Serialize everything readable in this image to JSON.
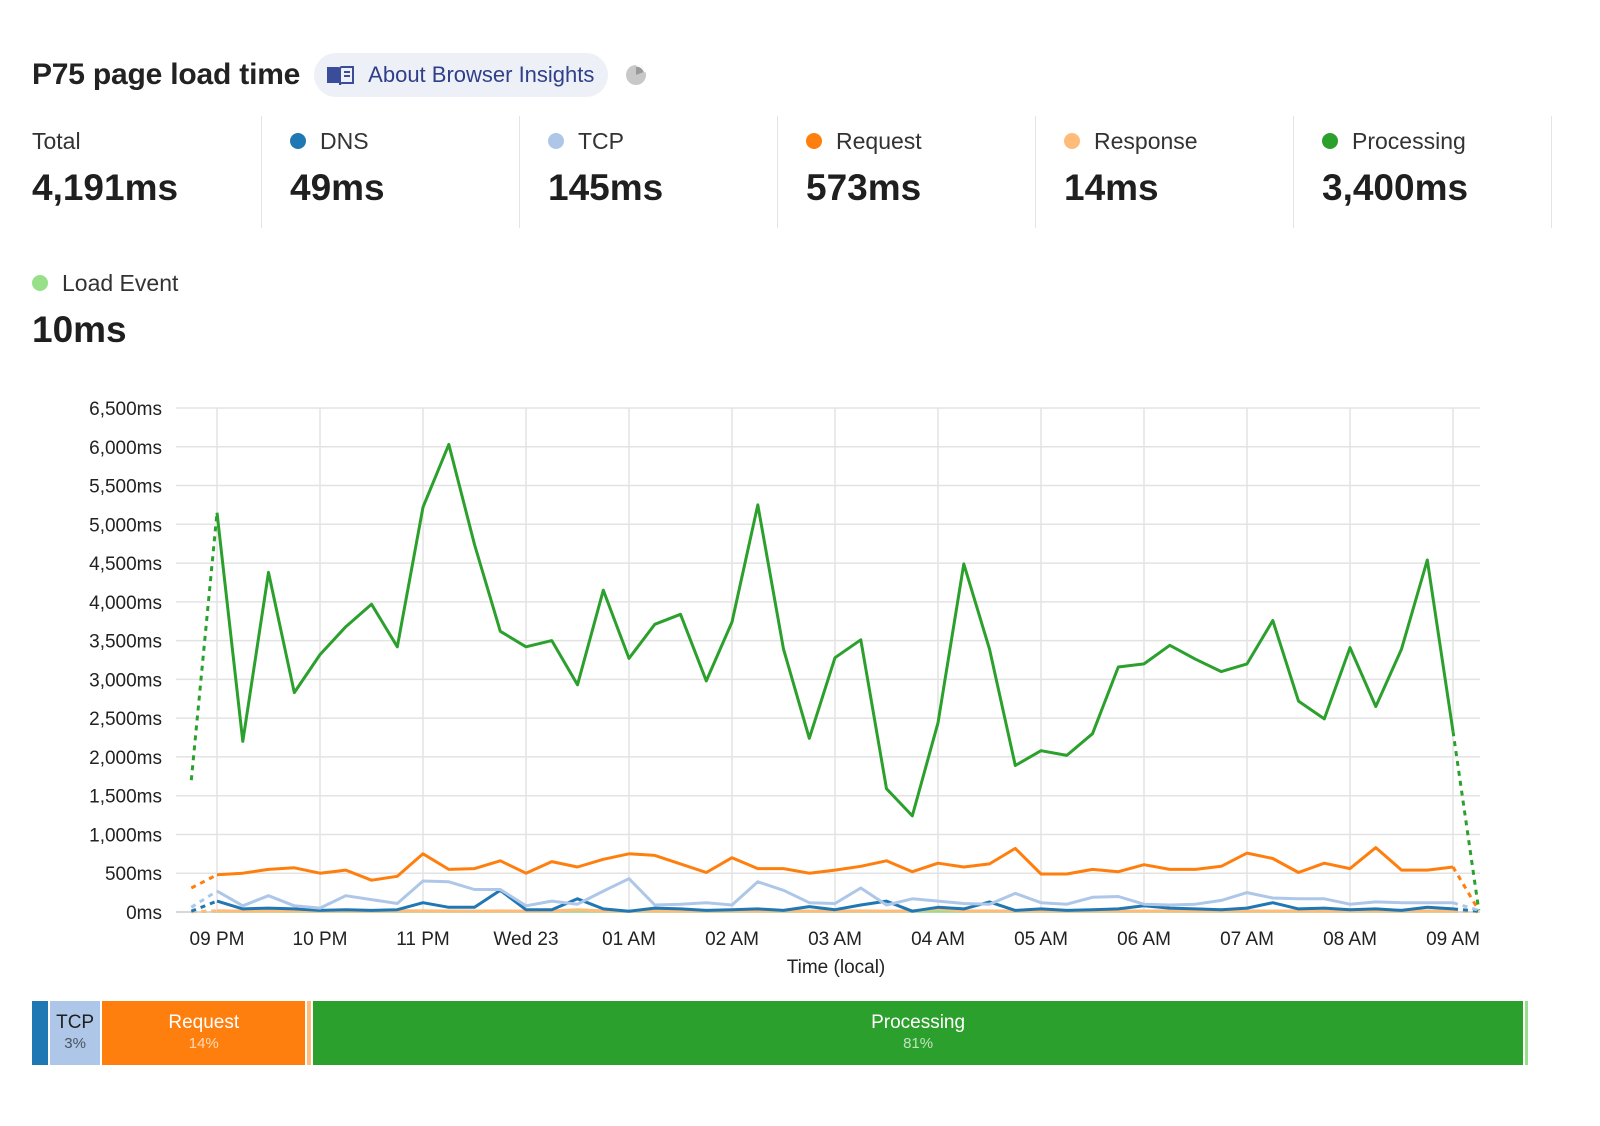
{
  "header": {
    "title": "P75 page load time",
    "about_label": "About Browser Insights"
  },
  "metrics": [
    {
      "label": "Total",
      "value": "4,191ms",
      "color": null
    },
    {
      "label": "DNS",
      "value": "49ms",
      "color": "#1f77b4"
    },
    {
      "label": "TCP",
      "value": "145ms",
      "color": "#aec7e8"
    },
    {
      "label": "Request",
      "value": "573ms",
      "color": "#ff7f0e"
    },
    {
      "label": "Response",
      "value": "14ms",
      "color": "#ffbb78"
    },
    {
      "label": "Processing",
      "value": "3,400ms",
      "color": "#2ca02c"
    },
    {
      "label": "Load Event",
      "value": "10ms",
      "color": "#98df8a"
    }
  ],
  "chart_data": {
    "type": "line",
    "xlabel": "Time (local)",
    "ylabel": "",
    "ylim": [
      0,
      6500
    ],
    "y_ticks": [
      "0ms",
      "500ms",
      "1,000ms",
      "1,500ms",
      "2,000ms",
      "2,500ms",
      "3,000ms",
      "3,500ms",
      "4,000ms",
      "4,500ms",
      "5,000ms",
      "5,500ms",
      "6,000ms",
      "6,500ms"
    ],
    "x_ticks": [
      "09 PM",
      "10 PM",
      "11 PM",
      "Wed 23",
      "01 AM",
      "02 AM",
      "03 AM",
      "04 AM",
      "05 AM",
      "06 AM",
      "07 AM",
      "08 AM",
      "09 AM"
    ],
    "x_hours": [
      0,
      1,
      2,
      3,
      4,
      5,
      6,
      7,
      8,
      9,
      10,
      11,
      12
    ],
    "x": [
      -0.25,
      0,
      0.25,
      0.5,
      0.75,
      1,
      1.25,
      1.5,
      1.75,
      2,
      2.25,
      2.5,
      2.75,
      3,
      3.25,
      3.5,
      3.75,
      4,
      4.25,
      4.5,
      4.75,
      5,
      5.25,
      5.5,
      5.75,
      6,
      6.25,
      6.5,
      6.75,
      7,
      7.25,
      7.5,
      7.75,
      8,
      8.25,
      8.5,
      8.75,
      9,
      9.25,
      9.5,
      9.75,
      10,
      10.25,
      10.5,
      10.75,
      11,
      11.25,
      11.5,
      11.75,
      12,
      12.25
    ],
    "grid": true,
    "partial_first_last_dashed": true,
    "series": [
      {
        "name": "Processing",
        "color": "#2ca02c",
        "values": [
          1700,
          5150,
          2200,
          4380,
          2830,
          3320,
          3680,
          3970,
          3420,
          5220,
          6030,
          4740,
          3620,
          3420,
          3500,
          2930,
          4150,
          3270,
          3710,
          3840,
          2980,
          3740,
          5250,
          3390,
          2240,
          3280,
          3510,
          1590,
          1240,
          2440,
          4490,
          3390,
          1890,
          2080,
          2020,
          2300,
          3160,
          3200,
          3440,
          3260,
          3100,
          3200,
          3760,
          2720,
          2490,
          3410,
          2650,
          3390,
          4540,
          2330,
          20
        ]
      },
      {
        "name": "Request",
        "color": "#ff7f0e",
        "values": [
          310,
          480,
          500,
          550,
          570,
          500,
          540,
          410,
          460,
          750,
          550,
          560,
          660,
          500,
          650,
          580,
          680,
          750,
          730,
          620,
          510,
          700,
          560,
          560,
          500,
          540,
          590,
          660,
          520,
          630,
          580,
          620,
          820,
          490,
          490,
          550,
          520,
          610,
          550,
          550,
          590,
          760,
          690,
          510,
          630,
          560,
          830,
          540,
          540,
          580,
          20
        ]
      },
      {
        "name": "TCP",
        "color": "#aec7e8",
        "values": [
          60,
          270,
          80,
          210,
          80,
          50,
          210,
          160,
          110,
          400,
          390,
          290,
          290,
          80,
          140,
          100,
          270,
          430,
          90,
          100,
          120,
          90,
          390,
          280,
          120,
          110,
          310,
          90,
          170,
          140,
          110,
          100,
          240,
          120,
          100,
          190,
          200,
          100,
          90,
          100,
          150,
          250,
          180,
          170,
          170,
          100,
          130,
          120,
          120,
          120,
          20
        ]
      },
      {
        "name": "DNS",
        "color": "#1f77b4",
        "values": [
          10,
          140,
          40,
          50,
          40,
          20,
          30,
          20,
          30,
          120,
          60,
          60,
          280,
          30,
          30,
          170,
          40,
          10,
          50,
          40,
          20,
          30,
          40,
          20,
          70,
          30,
          90,
          140,
          10,
          60,
          40,
          130,
          20,
          40,
          20,
          30,
          40,
          80,
          50,
          40,
          30,
          50,
          120,
          40,
          50,
          30,
          40,
          20,
          60,
          40,
          10
        ]
      },
      {
        "name": "Response",
        "color": "#ffbb78",
        "values": [
          5,
          15,
          12,
          14,
          16,
          12,
          14,
          12,
          15,
          14,
          13,
          12,
          14,
          12,
          13,
          30,
          14,
          12,
          14,
          12,
          13,
          14,
          12,
          14,
          12,
          13,
          14,
          12,
          14,
          40,
          13,
          14,
          12,
          14,
          12,
          13,
          14,
          12,
          14,
          12,
          13,
          14,
          12,
          14,
          12,
          13,
          14,
          12,
          14,
          12,
          5
        ]
      },
      {
        "name": "Load Event",
        "color": "#98df8a",
        "values": [
          5,
          10,
          10,
          10,
          10,
          10,
          10,
          10,
          10,
          10,
          10,
          10,
          10,
          10,
          10,
          10,
          10,
          10,
          10,
          10,
          10,
          10,
          10,
          10,
          10,
          10,
          10,
          10,
          10,
          10,
          10,
          10,
          10,
          10,
          10,
          10,
          10,
          10,
          10,
          10,
          10,
          10,
          10,
          10,
          10,
          10,
          10,
          10,
          10,
          10,
          5
        ]
      }
    ]
  },
  "breakdown": [
    {
      "name": "DNS",
      "label": "",
      "pct_label": "",
      "pct": 1.2,
      "color": "#1f77b4",
      "text_color": "#ffffff"
    },
    {
      "name": "TCP",
      "label": "TCP",
      "pct_label": "3%",
      "pct": 3.5,
      "color": "#aec7e8",
      "text_color": "#1f1f1f"
    },
    {
      "name": "Request",
      "label": "Request",
      "pct_label": "14%",
      "pct": 13.7,
      "color": "#ff7f0e",
      "text_color": "#ffffff"
    },
    {
      "name": "Response",
      "label": "",
      "pct_label": "",
      "pct": 0.4,
      "color": "#ffbb78",
      "text_color": "#ffffff"
    },
    {
      "name": "Processing",
      "label": "Processing",
      "pct_label": "81%",
      "pct": 81.0,
      "color": "#2ca02c",
      "text_color": "#ffffff"
    },
    {
      "name": "Load Event",
      "label": "",
      "pct_label": "",
      "pct": 0.2,
      "color": "#98df8a",
      "text_color": "#ffffff"
    }
  ]
}
